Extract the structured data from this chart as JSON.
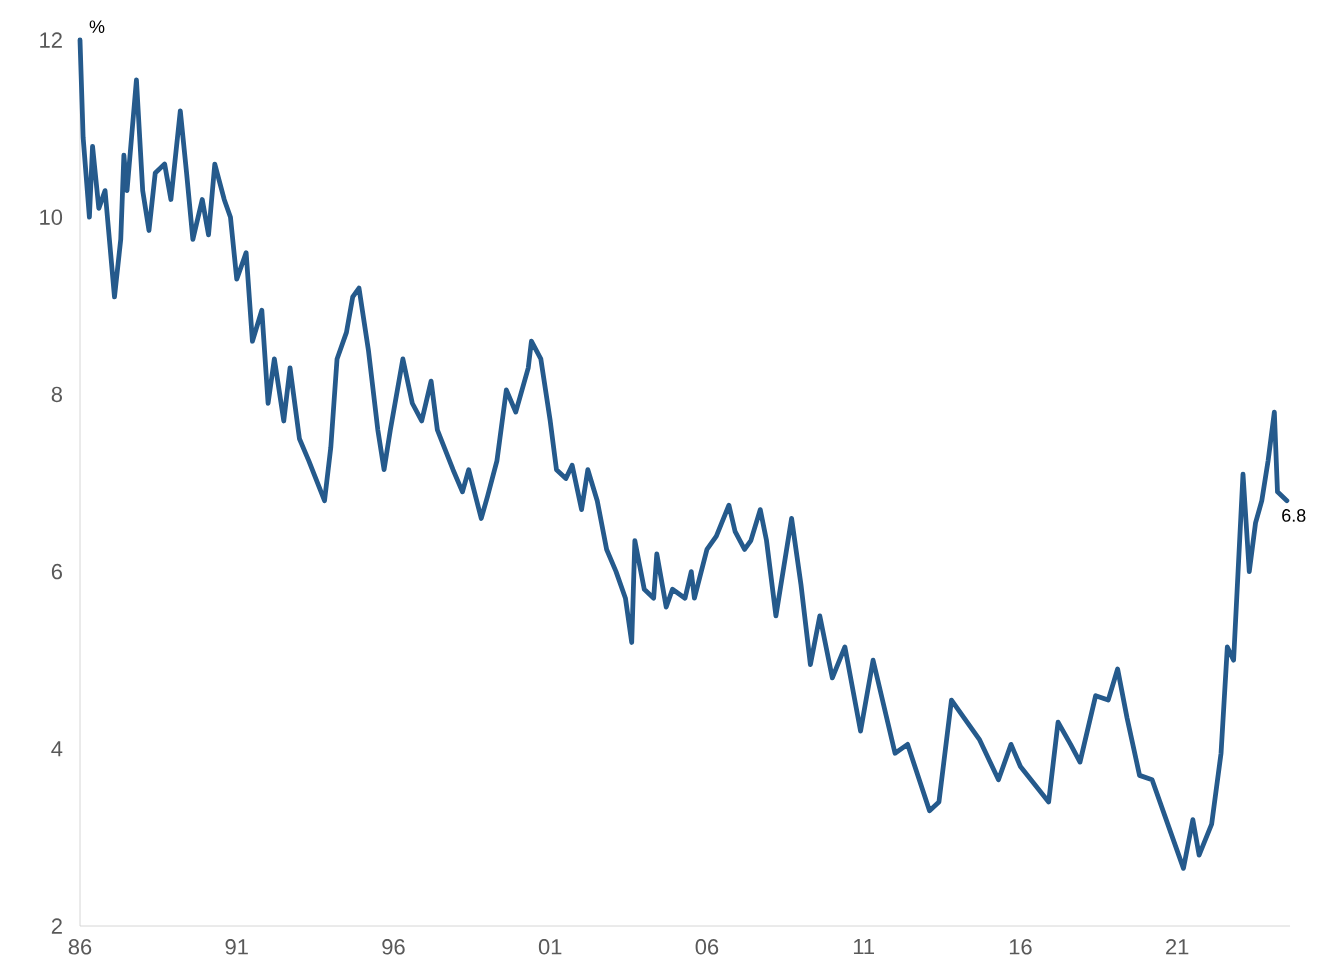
{
  "chart_data": {
    "type": "line",
    "ylabel": "%",
    "x": [
      1986.0,
      1986.1,
      1986.3,
      1986.4,
      1986.6,
      1986.8,
      1987.1,
      1987.3,
      1987.4,
      1987.5,
      1987.8,
      1988.0,
      1988.2,
      1988.4,
      1988.7,
      1988.9,
      1989.2,
      1989.4,
      1989.6,
      1989.9,
      1990.1,
      1990.3,
      1990.6,
      1990.8,
      1991.0,
      1991.3,
      1991.5,
      1991.8,
      1992.0,
      1992.2,
      1992.5,
      1992.7,
      1993.0,
      1993.3,
      1993.8,
      1994.0,
      1994.2,
      1994.5,
      1994.7,
      1994.9,
      1995.2,
      1995.5,
      1995.7,
      1995.9,
      1996.3,
      1996.6,
      1996.9,
      1997.2,
      1997.4,
      1997.9,
      1998.2,
      1998.4,
      1998.8,
      1999.0,
      1999.3,
      1999.6,
      1999.9,
      2000.3,
      2000.4,
      2000.7,
      2001.0,
      2001.2,
      2001.5,
      2001.7,
      2002.0,
      2002.2,
      2002.5,
      2002.8,
      2003.1,
      2003.4,
      2003.6,
      2003.7,
      2004.0,
      2004.3,
      2004.4,
      2004.7,
      2004.9,
      2005.3,
      2005.5,
      2005.6,
      2006.0,
      2006.3,
      2006.7,
      2006.9,
      2007.2,
      2007.4,
      2007.7,
      2007.9,
      2008.2,
      2008.7,
      2009.0,
      2009.3,
      2009.6,
      2010.0,
      2010.4,
      2010.9,
      2011.3,
      2012.0,
      2012.4,
      2013.1,
      2013.4,
      2013.8,
      2014.1,
      2014.7,
      2015.3,
      2015.7,
      2016.0,
      2016.9,
      2017.2,
      2017.6,
      2017.9,
      2018.4,
      2018.8,
      2019.1,
      2019.4,
      2019.8,
      2020.2,
      2020.7,
      2021.2,
      2021.5,
      2021.7,
      2022.1,
      2022.4,
      2022.6,
      2022.8,
      2023.1,
      2023.3,
      2023.5,
      2023.7,
      2023.9,
      2024.1,
      2024.2,
      2024.5
    ],
    "series": [
      {
        "color": "#255a8c",
        "values": [
          12.0,
          10.9,
          10.0,
          10.8,
          10.1,
          10.3,
          9.1,
          9.75,
          10.7,
          10.3,
          11.55,
          10.3,
          9.85,
          10.5,
          10.6,
          10.2,
          11.2,
          10.5,
          9.75,
          10.2,
          9.8,
          10.6,
          10.2,
          10.0,
          9.3,
          9.6,
          8.6,
          8.95,
          7.9,
          8.4,
          7.7,
          8.3,
          7.5,
          7.25,
          6.8,
          7.4,
          8.4,
          8.7,
          9.1,
          9.2,
          8.5,
          7.6,
          7.15,
          7.6,
          8.4,
          7.9,
          7.7,
          8.15,
          7.6,
          7.15,
          6.9,
          7.15,
          6.6,
          6.85,
          7.25,
          8.05,
          7.8,
          8.3,
          8.6,
          8.4,
          7.7,
          7.15,
          7.05,
          7.2,
          6.7,
          7.15,
          6.8,
          6.25,
          6.0,
          5.7,
          5.2,
          6.35,
          5.8,
          5.7,
          6.2,
          5.6,
          5.8,
          5.7,
          6.0,
          5.7,
          6.25,
          6.4,
          6.75,
          6.45,
          6.25,
          6.35,
          6.7,
          6.35,
          5.5,
          6.6,
          5.85,
          4.95,
          5.5,
          4.8,
          5.15,
          4.2,
          5.0,
          3.95,
          4.05,
          3.3,
          3.4,
          4.55,
          4.4,
          4.1,
          3.65,
          4.05,
          3.8,
          3.4,
          4.3,
          4.05,
          3.85,
          4.6,
          4.55,
          4.9,
          4.35,
          3.7,
          3.65,
          3.15,
          2.65,
          3.2,
          2.8,
          3.15,
          3.95,
          5.15,
          5.0,
          7.1,
          6.0,
          6.55,
          6.8,
          7.25,
          7.8,
          6.9,
          6.8
        ]
      }
    ],
    "xlim": [
      1986,
      2024.6
    ],
    "xticks": [
      {
        "value": 1986,
        "label": "86"
      },
      {
        "value": 1991,
        "label": "91"
      },
      {
        "value": 1996,
        "label": "96"
      },
      {
        "value": 2001,
        "label": "01"
      },
      {
        "value": 2006,
        "label": "06"
      },
      {
        "value": 2011,
        "label": "11"
      },
      {
        "value": 2016,
        "label": "16"
      },
      {
        "value": 2021,
        "label": "21"
      }
    ],
    "ylim": [
      2,
      12
    ],
    "yticks": [
      2,
      4,
      6,
      8,
      10,
      12
    ],
    "line_style": "solid",
    "annotations": [
      {
        "text": "6.8",
        "x": 2024.5,
        "y": 6.8
      }
    ]
  }
}
